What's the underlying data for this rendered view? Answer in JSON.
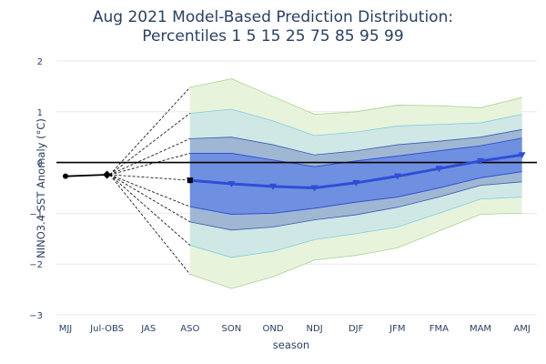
{
  "chart_data": {
    "type": "area",
    "title": "Aug 2021 Model-Based Prediction Distribution:",
    "subtitle": "Percentiles 1 5 15 25 75 85 95 99",
    "xlabel": "season",
    "ylabel": "NINO3.4 SST Anomaly (°C)",
    "ylim": [
      -3,
      2
    ],
    "yticks": [
      -3,
      -2,
      -1,
      0,
      1,
      2
    ],
    "ytick_labels": [
      "−3",
      "−2",
      "−1",
      "0",
      "1",
      "2"
    ],
    "categories": [
      "MJJ",
      "Jul-OBS",
      "JAS",
      "ASO",
      "SON",
      "OND",
      "NDJ",
      "DJF",
      "JFM",
      "FMA",
      "MAM",
      "AMJ"
    ],
    "observed": {
      "categories": [
        "MJJ",
        "Jul-OBS"
      ],
      "values": [
        -0.27,
        -0.24
      ]
    },
    "forecast_categories": [
      "ASO",
      "SON",
      "OND",
      "NDJ",
      "DJF",
      "JFM",
      "FMA",
      "MAM",
      "AMJ"
    ],
    "percentiles": {
      "p1": [
        -2.2,
        -2.48,
        -2.25,
        -1.92,
        -1.83,
        -1.68,
        -1.35,
        -1.02,
        -1.0
      ],
      "p5": [
        -1.63,
        -1.87,
        -1.75,
        -1.52,
        -1.4,
        -1.27,
        -1.0,
        -0.72,
        -0.68
      ],
      "p15": [
        -1.17,
        -1.33,
        -1.27,
        -1.13,
        -1.03,
        -0.88,
        -0.68,
        -0.45,
        -0.38
      ],
      "p25": [
        -0.87,
        -1.02,
        -1.0,
        -0.9,
        -0.78,
        -0.68,
        -0.5,
        -0.3,
        -0.18
      ],
      "median": [
        -0.35,
        -0.42,
        -0.47,
        -0.5,
        -0.4,
        -0.27,
        -0.12,
        0.03,
        0.15
      ],
      "p75": [
        0.18,
        0.18,
        0.05,
        -0.08,
        0.03,
        0.13,
        0.23,
        0.33,
        0.48
      ],
      "p85": [
        0.47,
        0.5,
        0.35,
        0.15,
        0.23,
        0.35,
        0.42,
        0.5,
        0.65
      ],
      "p95": [
        0.97,
        1.05,
        0.82,
        0.53,
        0.6,
        0.72,
        0.75,
        0.78,
        0.95
      ],
      "p99": [
        1.48,
        1.65,
        1.3,
        0.95,
        1.0,
        1.13,
        1.12,
        1.08,
        1.28
      ]
    },
    "colors": {
      "band_p1_p99": "#e8f3dc",
      "band_p5_p95": "#cfe8e6",
      "band_p15_p85": "#9fb7d3",
      "band_p25_p75": "#6f8fe0",
      "line_p1_p99": "#a9d18e",
      "line_p5_p95": "#7fcfdc",
      "line_p15_p85": "#3a5bb0",
      "line_p25_p75": "#2f52d6",
      "median": "#2f4ed6",
      "observed": "#000000",
      "zero_line": "#000000",
      "grid": "#e8e8e8",
      "text": "#2a3f5f"
    },
    "grid": true,
    "legend": "none"
  }
}
